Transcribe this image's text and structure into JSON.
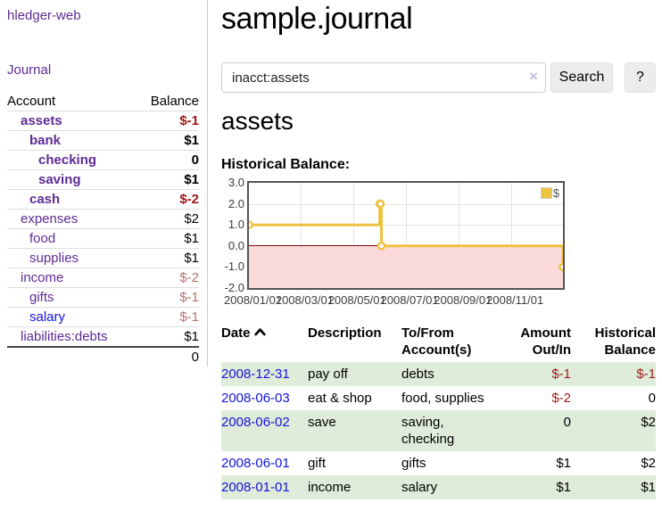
{
  "sidebar": {
    "app_title": "hledger-web",
    "nav": {
      "journal_label": "Journal"
    },
    "accounts": {
      "header": {
        "account": "Account",
        "balance": "Balance"
      },
      "rows": [
        {
          "name": "assets",
          "balance": "$-1",
          "indent": 0,
          "bold": true,
          "balance_style": "neg-strong"
        },
        {
          "name": "bank",
          "balance": "$1",
          "indent": 1,
          "bold": true,
          "balance_style": "pos"
        },
        {
          "name": "checking",
          "balance": "0",
          "indent": 2,
          "bold": true,
          "balance_style": "pos"
        },
        {
          "name": "saving",
          "balance": "$1",
          "indent": 2,
          "bold": true,
          "balance_style": "pos"
        },
        {
          "name": "cash",
          "balance": "$-2",
          "indent": 1,
          "bold": true,
          "balance_style": "neg-strong"
        },
        {
          "name": "expenses",
          "balance": "$2",
          "indent": 0,
          "bold": false,
          "balance_style": "pos"
        },
        {
          "name": "food",
          "balance": "$1",
          "indent": 1,
          "bold": false,
          "balance_style": "pos"
        },
        {
          "name": "supplies",
          "balance": "$1",
          "indent": 1,
          "bold": false,
          "balance_style": "pos"
        },
        {
          "name": "income",
          "balance": "$-2",
          "indent": 0,
          "bold": false,
          "balance_style": "neg-soft"
        },
        {
          "name": "gifts",
          "balance": "$-1",
          "indent": 1,
          "bold": false,
          "balance_style": "neg-soft"
        },
        {
          "name": "salary",
          "balance": "$-1",
          "indent": 1,
          "bold": false,
          "balance_style": "neg-soft",
          "link_color": "blue"
        },
        {
          "name": "liabilities:debts",
          "balance": "$1",
          "indent": 0,
          "bold": false,
          "balance_style": "pos"
        }
      ],
      "total": "0"
    }
  },
  "main": {
    "title": "sample.journal",
    "search": {
      "value": "inacct:assets",
      "clear_icon": "×",
      "button_label": "Search",
      "help_label": "?"
    },
    "account_heading": "assets",
    "chart_heading": "Historical Balance:",
    "register": {
      "headers": {
        "date": "Date",
        "description": "Description",
        "accounts": "To/From Account(s)",
        "amount": "Amount Out/In",
        "balance": "Historical Balance"
      },
      "rows": [
        {
          "date": "2008-12-31",
          "description": "pay off",
          "accounts": "debts",
          "amount": "$-1",
          "balance": "$-1",
          "amount_neg": true,
          "balance_neg": true
        },
        {
          "date": "2008-06-03",
          "description": "eat & shop",
          "accounts": "food, supplies",
          "amount": "$-2",
          "balance": "0",
          "amount_neg": true,
          "balance_neg": false
        },
        {
          "date": "2008-06-02",
          "description": "save",
          "accounts": "saving, checking",
          "amount": "0",
          "balance": "$2",
          "amount_neg": false,
          "balance_neg": false
        },
        {
          "date": "2008-06-01",
          "description": "gift",
          "accounts": "gifts",
          "amount": "$1",
          "balance": "$2",
          "amount_neg": false,
          "balance_neg": false
        },
        {
          "date": "2008-01-01",
          "description": "income",
          "accounts": "salary",
          "amount": "$1",
          "balance": "$1",
          "amount_neg": false,
          "balance_neg": false
        }
      ]
    }
  },
  "chart_data": {
    "type": "line",
    "step": true,
    "title": "Historical Balance",
    "series": [
      {
        "name": "$",
        "color": "#edc240",
        "points": [
          [
            "2008-01-01",
            1.0
          ],
          [
            "2008-06-01",
            2.0
          ],
          [
            "2008-06-02",
            2.0
          ],
          [
            "2008-06-03",
            0.0
          ],
          [
            "2008-12-31",
            -1.0
          ]
        ]
      }
    ],
    "xlim": [
      "2008-01-01",
      "2008-12-31"
    ],
    "ylim": [
      -2.0,
      3.0
    ],
    "x_ticks": [
      "2008/01/01",
      "2008/03/01",
      "2008/05/01",
      "2008/07/01",
      "2008/09/01",
      "2008/11/01"
    ],
    "y_ticks": [
      3.0,
      2.0,
      1.0,
      0.0,
      -1.0,
      -2.0
    ],
    "grid": true,
    "legend_position": "top-right",
    "legend": "$",
    "negative_region_color": "#fbdada",
    "zero_line_color": "#8b0000"
  },
  "colors": {
    "accent_purple": "#5e2b97",
    "link_blue": "#1414dc",
    "negative_strong": "#a01616",
    "negative_soft": "#b87070",
    "register_negative": "#a11c1c",
    "row_stripe_green": "#dfecd9",
    "chart_series_gold": "#edc240",
    "chart_negative_fill": "#fbdada",
    "chart_zero_line": "#8b0000"
  }
}
